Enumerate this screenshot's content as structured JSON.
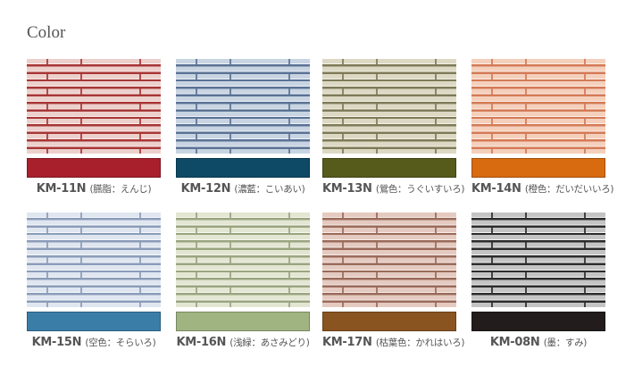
{
  "title": "Color",
  "items": [
    {
      "code": "KM-11N",
      "name": "(臙脂：えんじ)",
      "swatch": "#a8202c",
      "face": "#ecd0cc",
      "hi": "#f8ecea",
      "grout": "#a83636"
    },
    {
      "code": "KM-12N",
      "name": "(濃藍：こいあい)",
      "swatch": "#0e4a66",
      "face": "#c8d4e2",
      "hi": "#eef2f8",
      "grout": "#5a7294"
    },
    {
      "code": "KM-13N",
      "name": "(鶯色：うぐいすいろ)",
      "swatch": "#565a1a",
      "face": "#dcd8c4",
      "hi": "#f4f2e8",
      "grout": "#7e7a58"
    },
    {
      "code": "KM-14N",
      "name": "(橙色：だいだいいろ)",
      "swatch": "#d86a10",
      "face": "#f4d0bc",
      "hi": "#fcefe6",
      "grout": "#d47a56"
    },
    {
      "code": "KM-15N",
      "name": "(空色：そらいろ)",
      "swatch": "#3a7ea8",
      "face": "#e0e6f0",
      "hi": "#f6f8fc",
      "grout": "#8a9cb8"
    },
    {
      "code": "KM-16N",
      "name": "(浅緑：あさみどり)",
      "swatch": "#a0b482",
      "face": "#e2e6d2",
      "hi": "#f6f8ee",
      "grout": "#9aa480"
    },
    {
      "code": "KM-17N",
      "name": "(枯葉色：かれはいろ)",
      "swatch": "#8a5420",
      "face": "#e4cac0",
      "hi": "#f6ece8",
      "grout": "#9a6a5a"
    },
    {
      "code": "KM-08N",
      "name": "(墨：すみ)",
      "swatch": "#221c1c",
      "face": "#c4c4c4",
      "hi": "#f4f4f4",
      "grout": "#2c2c2c"
    }
  ]
}
